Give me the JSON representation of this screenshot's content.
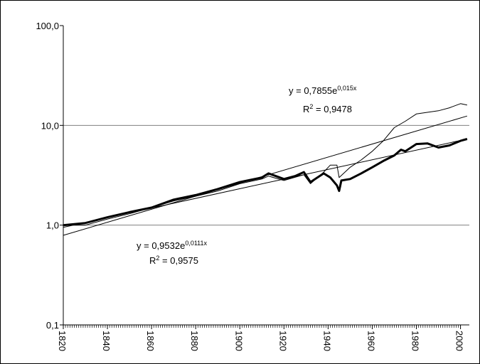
{
  "chart_data": {
    "type": "line",
    "log_scale_y": true,
    "grid": true,
    "xlim": [
      1820,
      2004
    ],
    "xticks": [
      1820,
      1840,
      1860,
      1880,
      1900,
      1920,
      1940,
      1960,
      1980,
      2000
    ],
    "ylim": [
      0.1,
      100
    ],
    "yticks": [
      {
        "value": 0.1,
        "label": "0,1"
      },
      {
        "value": 1,
        "label": "1,0"
      },
      {
        "value": 10,
        "label": "10,0"
      },
      {
        "value": 100,
        "label": "100,0"
      }
    ],
    "series": [
      {
        "color": "#000000",
        "width": 1,
        "x": [
          1820,
          1830,
          1840,
          1850,
          1860,
          1870,
          1880,
          1890,
          1900,
          1910,
          1913,
          1920,
          1929,
          1932,
          1938,
          1941,
          1944,
          1945,
          1950,
          1955,
          1960,
          1965,
          1970,
          1975,
          1980,
          1985,
          1990,
          1995,
          2000,
          2003
        ],
        "values": [
          1.0,
          1.0,
          1.15,
          1.3,
          1.5,
          1.75,
          1.95,
          2.2,
          2.6,
          2.9,
          3.1,
          2.8,
          3.2,
          2.6,
          3.4,
          4.0,
          4.0,
          3.0,
          3.8,
          4.5,
          5.5,
          7.0,
          9.5,
          11.0,
          13.0,
          13.5,
          14.0,
          15.0,
          16.5,
          16.0
        ]
      },
      {
        "color": "#000000",
        "width": 3,
        "x": [
          1820,
          1830,
          1840,
          1850,
          1860,
          1870,
          1880,
          1890,
          1900,
          1910,
          1913,
          1920,
          1925,
          1929,
          1932,
          1938,
          1941,
          1944,
          1945,
          1946,
          1950,
          1955,
          1960,
          1965,
          1970,
          1973,
          1975,
          1980,
          1985,
          1990,
          1995,
          2000,
          2003
        ],
        "values": [
          1.0,
          1.05,
          1.2,
          1.35,
          1.5,
          1.8,
          2.0,
          2.3,
          2.7,
          3.0,
          3.3,
          2.9,
          3.1,
          3.4,
          2.7,
          3.3,
          3.0,
          2.5,
          2.2,
          2.8,
          2.9,
          3.3,
          3.8,
          4.4,
          5.0,
          5.7,
          5.5,
          6.5,
          6.6,
          6.0,
          6.3,
          7.0,
          7.3
        ]
      },
      {
        "color": "#000000",
        "width": 1,
        "x": [
          1820,
          2003
        ],
        "values": [
          0.79,
          12.4
        ]
      },
      {
        "color": "#000000",
        "width": 1,
        "x": [
          1820,
          2003
        ],
        "values": [
          0.95,
          7.3
        ]
      }
    ],
    "annotations": [
      {
        "equation": "y = 0,7855e",
        "exponent": "0,015x",
        "r2_label": "R",
        "r2_power": "2",
        "r2_value": " = 0,9478"
      },
      {
        "equation": "y = 0,9532e",
        "exponent": "0,0111x",
        "r2_label": "R",
        "r2_power": "2",
        "r2_value": " = 0,9575"
      }
    ]
  }
}
